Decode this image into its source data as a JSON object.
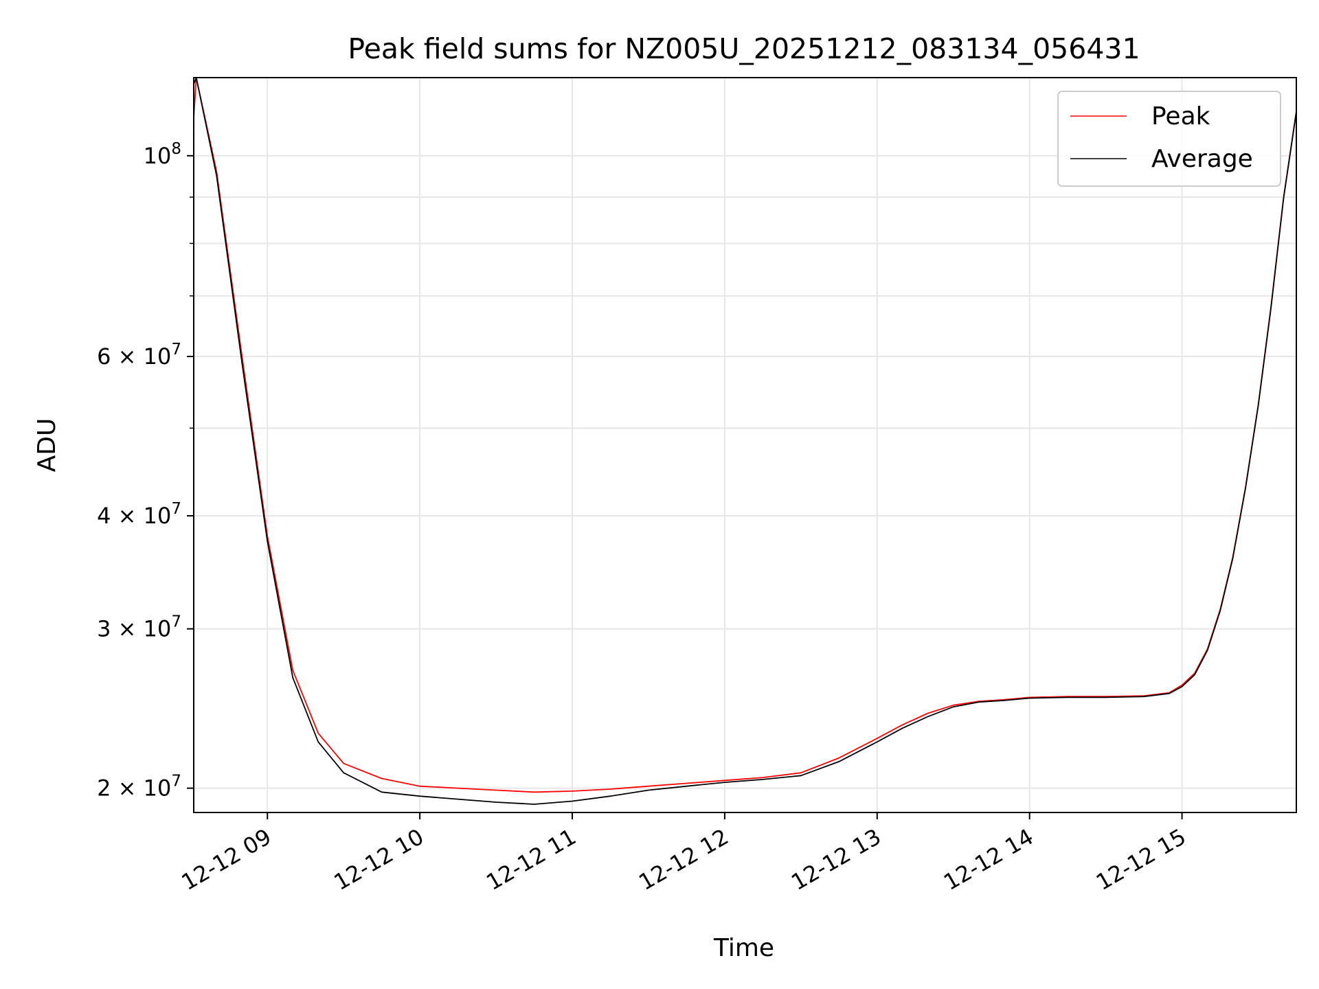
{
  "chart_data": {
    "type": "line",
    "title": "Peak field sums for NZ005U_20251212_083134_056431",
    "xlabel": "Time",
    "ylabel": "ADU",
    "x_range": [
      "2025-12-12 08:31",
      "2025-12-12 15:45"
    ],
    "y_scale": "log",
    "ylim": [
      18800000,
      122000000
    ],
    "grid": true,
    "legend_position": "top-right",
    "x_ticks": [
      "12-12 09",
      "12-12 10",
      "12-12 11",
      "12-12 12",
      "12-12 13",
      "12-12 14",
      "12-12 15"
    ],
    "y_ticks": [
      {
        "value": 100000000,
        "mantissa": "",
        "exponent": "8"
      },
      {
        "value": 60000000,
        "mantissa": "6",
        "exponent": "7"
      },
      {
        "value": 40000000,
        "mantissa": "4",
        "exponent": "7"
      },
      {
        "value": 30000000,
        "mantissa": "3",
        "exponent": "7"
      },
      {
        "value": 20000000,
        "mantissa": "2",
        "exponent": "7"
      }
    ],
    "y_minor_ticks": [
      50000000,
      70000000,
      80000000,
      90000000
    ],
    "series": [
      {
        "name": "Peak",
        "color": "#ff0000",
        "points": [
          [
            "08:31",
            110000000
          ],
          [
            "08:32",
            122000000
          ],
          [
            "08:40",
            96000000
          ],
          [
            "08:50",
            60000000
          ],
          [
            "09:00",
            38000000
          ],
          [
            "09:10",
            27000000
          ],
          [
            "09:20",
            23000000
          ],
          [
            "09:30",
            21300000
          ],
          [
            "09:45",
            20500000
          ],
          [
            "10:00",
            20100000
          ],
          [
            "10:15",
            20000000
          ],
          [
            "10:30",
            19900000
          ],
          [
            "10:45",
            19800000
          ],
          [
            "11:00",
            19850000
          ],
          [
            "11:15",
            19950000
          ],
          [
            "11:30",
            20100000
          ],
          [
            "11:45",
            20250000
          ],
          [
            "12:00",
            20400000
          ],
          [
            "12:15",
            20550000
          ],
          [
            "12:30",
            20800000
          ],
          [
            "12:45",
            21600000
          ],
          [
            "13:00",
            22700000
          ],
          [
            "13:10",
            23500000
          ],
          [
            "13:20",
            24200000
          ],
          [
            "13:30",
            24700000
          ],
          [
            "13:40",
            24950000
          ],
          [
            "13:50",
            25050000
          ],
          [
            "14:00",
            25200000
          ],
          [
            "14:15",
            25250000
          ],
          [
            "14:30",
            25250000
          ],
          [
            "14:45",
            25300000
          ],
          [
            "14:55",
            25500000
          ],
          [
            "15:00",
            26000000
          ],
          [
            "15:05",
            26800000
          ],
          [
            "15:10",
            28500000
          ],
          [
            "15:15",
            31500000
          ],
          [
            "15:20",
            36000000
          ],
          [
            "15:25",
            43000000
          ],
          [
            "15:30",
            53000000
          ],
          [
            "15:35",
            68000000
          ],
          [
            "15:40",
            90000000
          ],
          [
            "15:45",
            112000000
          ]
        ]
      },
      {
        "name": "Average",
        "color": "#000000",
        "points": [
          [
            "08:31",
            120000000
          ],
          [
            "08:32",
            122000000
          ],
          [
            "08:40",
            95000000
          ],
          [
            "08:50",
            59000000
          ],
          [
            "09:00",
            37500000
          ],
          [
            "09:10",
            26500000
          ],
          [
            "09:20",
            22500000
          ],
          [
            "09:30",
            20800000
          ],
          [
            "09:45",
            19800000
          ],
          [
            "10:00",
            19600000
          ],
          [
            "10:15",
            19450000
          ],
          [
            "10:30",
            19300000
          ],
          [
            "10:45",
            19200000
          ],
          [
            "11:00",
            19350000
          ],
          [
            "11:15",
            19600000
          ],
          [
            "11:30",
            19900000
          ],
          [
            "11:45",
            20100000
          ],
          [
            "12:00",
            20300000
          ],
          [
            "12:15",
            20450000
          ],
          [
            "12:30",
            20650000
          ],
          [
            "12:45",
            21400000
          ],
          [
            "13:00",
            22500000
          ],
          [
            "13:10",
            23300000
          ],
          [
            "13:20",
            24000000
          ],
          [
            "13:30",
            24600000
          ],
          [
            "13:40",
            24900000
          ],
          [
            "13:50",
            25000000
          ],
          [
            "14:00",
            25150000
          ],
          [
            "14:15",
            25200000
          ],
          [
            "14:30",
            25200000
          ],
          [
            "14:45",
            25250000
          ],
          [
            "14:55",
            25450000
          ],
          [
            "15:00",
            25900000
          ],
          [
            "15:05",
            26700000
          ],
          [
            "15:10",
            28400000
          ],
          [
            "15:15",
            31400000
          ],
          [
            "15:20",
            35900000
          ],
          [
            "15:25",
            42900000
          ],
          [
            "15:30",
            52900000
          ],
          [
            "15:35",
            67800000
          ],
          [
            "15:40",
            89800000
          ],
          [
            "15:45",
            111800000
          ]
        ]
      }
    ]
  }
}
